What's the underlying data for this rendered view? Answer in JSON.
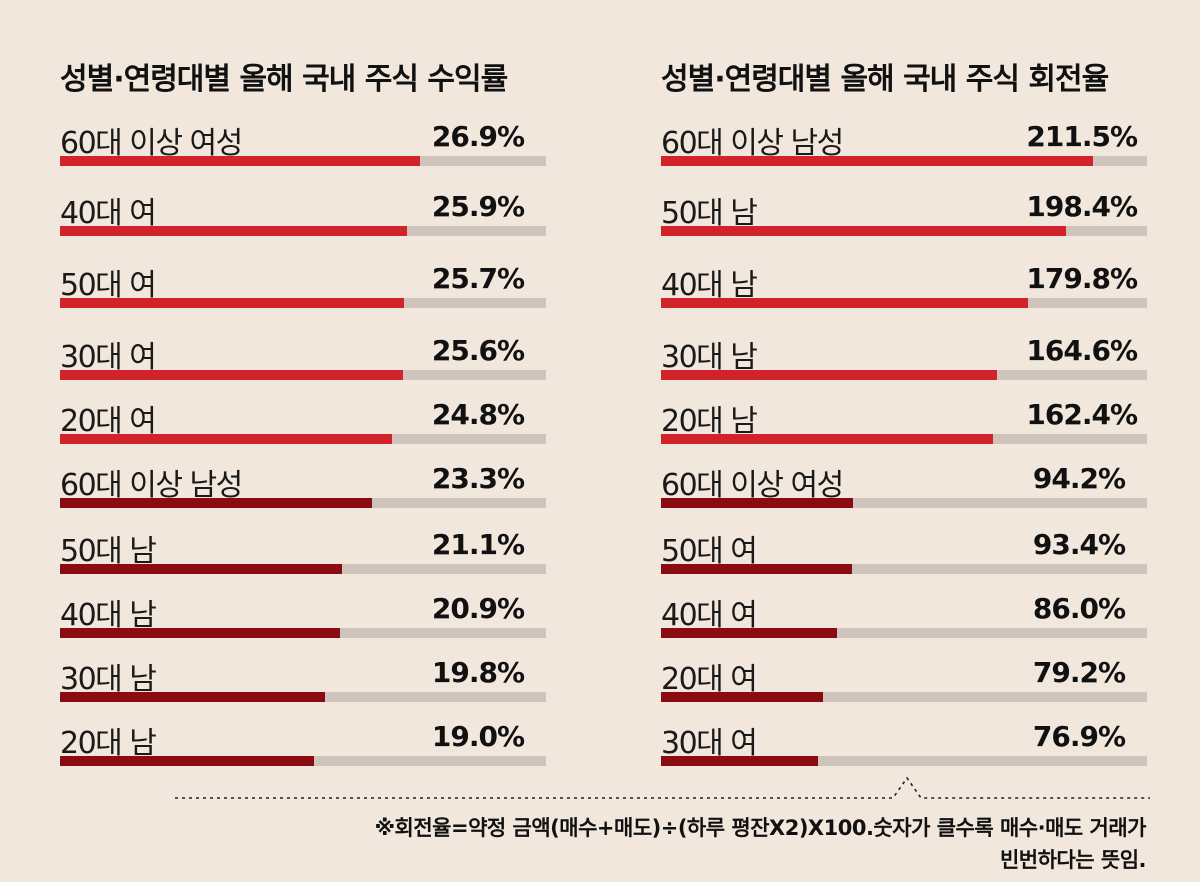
{
  "colors": {
    "background": "#f2e7dc",
    "top_bar": "#d2232a",
    "low_bar": "#8b0b12",
    "track": "#cfc4bb"
  },
  "chart_data": [
    {
      "type": "bar",
      "orientation": "horizontal",
      "title": "성별·연령대별 올해 국내 주식 수익률",
      "xlim": [
        0,
        36.3
      ],
      "categories": [
        "60대 이상 여성",
        "40대 여",
        "50대 여",
        "30대 여",
        "20대 여",
        "60대 이상 남성",
        "50대 남",
        "40대 남",
        "30대 남",
        "20대 남"
      ],
      "values": [
        26.9,
        25.9,
        25.7,
        25.6,
        24.8,
        23.3,
        21.1,
        20.9,
        19.8,
        19.0
      ],
      "value_labels": [
        "26.9%",
        "25.9%",
        "25.7%",
        "25.6%",
        "24.8%",
        "23.3%",
        "21.1%",
        "20.9%",
        "19.8%",
        "19.0%"
      ],
      "highlight_count": 5
    },
    {
      "type": "bar",
      "orientation": "horizontal",
      "title": "성별·연령대별 올해 국내 주식 회전율",
      "xlim": [
        0,
        238
      ],
      "categories": [
        "60대 이상 남성",
        "50대 남",
        "40대 남",
        "30대 남",
        "20대 남",
        "60대 이상 여성",
        "50대 여",
        "40대 여",
        "20대 여",
        "30대 여"
      ],
      "values": [
        211.5,
        198.4,
        179.8,
        164.6,
        162.4,
        94.2,
        93.4,
        86.0,
        79.2,
        76.9
      ],
      "value_labels": [
        "211.5%",
        "198.4%",
        "179.8%",
        "164.6%",
        "162.4%",
        "94.2%",
        "93.4%",
        "86.0%",
        "79.2%",
        "76.9%"
      ],
      "highlight_count": 5
    }
  ],
  "note": {
    "line1": "※회전율=약정 금액(매수+매도)÷(하루 평잔X2)X100.숫자가 클수록 매수·매도 거래가",
    "line2": "빈번하다는 뜻임."
  }
}
